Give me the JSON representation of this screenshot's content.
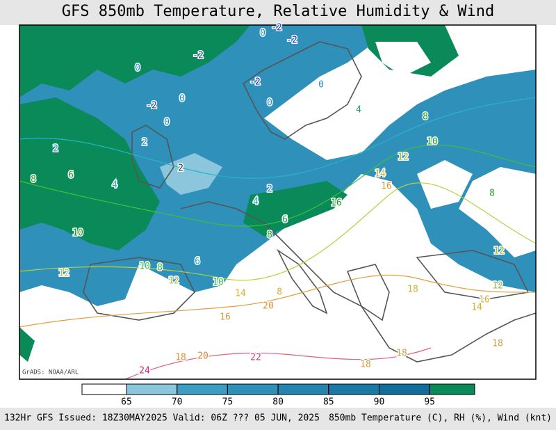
{
  "header": {
    "title": "GFS 850mb Temperature, Relative Humidity & Wind"
  },
  "map": {
    "credit": "GrADS: NOAA/ARL",
    "contour_labels": [
      "0",
      "-2",
      "-2",
      "-2",
      "0",
      "-2",
      "0",
      "-2",
      "0",
      "0",
      "0",
      "2",
      "2",
      "2",
      "8",
      "6",
      "4",
      "4",
      "8",
      "10",
      "12",
      "14",
      "16",
      "2",
      "4",
      "16",
      "6",
      "8",
      "10",
      "8",
      "12",
      "12",
      "16",
      "14",
      "12",
      "10",
      "8",
      "6",
      "12",
      "10",
      "14",
      "8",
      "20",
      "16",
      "18",
      "18",
      "20",
      "22",
      "24",
      "18",
      "18",
      "18"
    ]
  },
  "colorbar": {
    "ticks": [
      65,
      70,
      75,
      80,
      85,
      90,
      95
    ],
    "colors": [
      "#ffffff",
      "#8cc6dc",
      "#3d9cc4",
      "#2f90ba",
      "#2384b0",
      "#1b79a6",
      "#116e9c",
      "#0a8a58"
    ]
  },
  "footer": {
    "left": "132Hr GFS Issued: 18Z30MAY2025 Valid: 06Z ??? 05 JUN, 2025",
    "right": "850mb Temperature (C), RH (%), Wind (knt)"
  }
}
